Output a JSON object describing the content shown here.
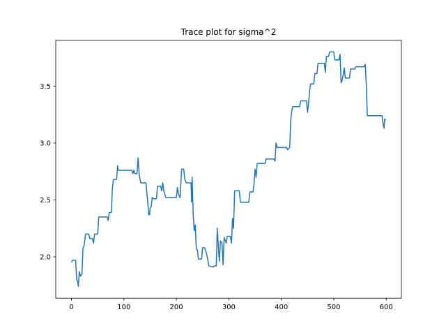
{
  "chart_data": {
    "type": "line",
    "title": "Trace plot for sigma^2",
    "x": [
      0,
      2,
      8,
      10,
      12,
      13,
      15,
      17,
      20,
      22,
      24,
      27,
      33,
      35,
      40,
      42,
      44,
      50,
      52,
      68,
      70,
      72,
      76,
      78,
      80,
      86,
      88,
      89,
      115,
      117,
      119,
      121,
      125,
      127,
      129,
      132,
      142,
      144,
      146,
      147,
      149,
      150,
      152,
      154,
      157,
      162,
      164,
      170,
      172,
      174,
      176,
      180,
      200,
      202,
      204,
      207,
      210,
      214,
      216,
      219,
      228,
      229,
      230,
      232,
      234,
      236,
      238,
      240,
      242,
      248,
      250,
      254,
      258,
      262,
      270,
      272,
      276,
      278,
      280,
      282,
      284,
      287,
      289,
      291,
      295,
      297,
      303,
      305,
      307,
      309,
      311,
      320,
      322,
      338,
      340,
      346,
      348,
      350,
      352,
      354,
      369,
      371,
      386,
      388,
      390,
      392,
      410,
      412,
      416,
      418,
      420,
      422,
      435,
      437,
      448,
      450,
      452,
      454,
      456,
      462,
      464,
      468,
      470,
      482,
      484,
      486,
      490,
      492,
      500,
      502,
      510,
      512,
      514,
      516,
      518,
      520,
      522,
      530,
      532,
      540,
      542,
      558,
      560,
      562,
      564,
      592,
      594,
      596,
      597,
      599
    ],
    "series": [
      {
        "name": "sigma^2",
        "color": "#1f77b4",
        "values": [
          1.95,
          1.97,
          1.97,
          1.8,
          1.78,
          1.74,
          1.87,
          1.83,
          1.85,
          2.08,
          2.1,
          2.2,
          2.2,
          2.16,
          2.16,
          2.12,
          2.2,
          2.2,
          2.35,
          2.35,
          2.32,
          2.39,
          2.39,
          2.6,
          2.68,
          2.68,
          2.8,
          2.76,
          2.76,
          2.73,
          2.76,
          2.73,
          2.73,
          2.87,
          2.73,
          2.65,
          2.65,
          2.55,
          2.45,
          2.37,
          2.37,
          2.43,
          2.44,
          2.52,
          2.51,
          2.51,
          2.62,
          2.62,
          2.58,
          2.65,
          2.58,
          2.52,
          2.52,
          2.61,
          2.55,
          2.52,
          2.77,
          2.77,
          2.68,
          2.65,
          2.65,
          2.48,
          2.7,
          2.38,
          2.23,
          2.28,
          2.07,
          2.06,
          1.98,
          1.98,
          2.08,
          2.08,
          2.02,
          1.92,
          1.91,
          1.92,
          1.92,
          2.25,
          2.09,
          1.96,
          2.14,
          2.12,
          1.93,
          2.17,
          2.12,
          2.18,
          2.18,
          2.12,
          2.34,
          2.25,
          2.58,
          2.58,
          2.48,
          2.48,
          2.57,
          2.57,
          2.64,
          2.77,
          2.7,
          2.82,
          2.82,
          2.86,
          2.86,
          2.84,
          3.0,
          2.96,
          2.96,
          2.94,
          2.96,
          3.2,
          3.28,
          3.32,
          3.32,
          3.37,
          3.37,
          3.27,
          3.35,
          3.46,
          3.52,
          3.52,
          3.61,
          3.61,
          3.7,
          3.7,
          3.62,
          3.76,
          3.76,
          3.8,
          3.8,
          3.73,
          3.73,
          3.78,
          3.53,
          3.55,
          3.6,
          3.66,
          3.57,
          3.57,
          3.65,
          3.65,
          3.67,
          3.67,
          3.69,
          3.52,
          3.24,
          3.24,
          3.17,
          3.13,
          3.21,
          3.2
        ]
      }
    ],
    "xlim": [
      -29.95,
      628.95
    ],
    "xticks": [
      0,
      100,
      200,
      300,
      400,
      500,
      600
    ],
    "ylim": [
      1.637,
      3.903
    ],
    "yticks": [
      {
        "value": 2,
        "label": "2.0"
      },
      2.5,
      {
        "value": 3,
        "label": "3.0"
      },
      3.5
    ],
    "grid": false
  }
}
